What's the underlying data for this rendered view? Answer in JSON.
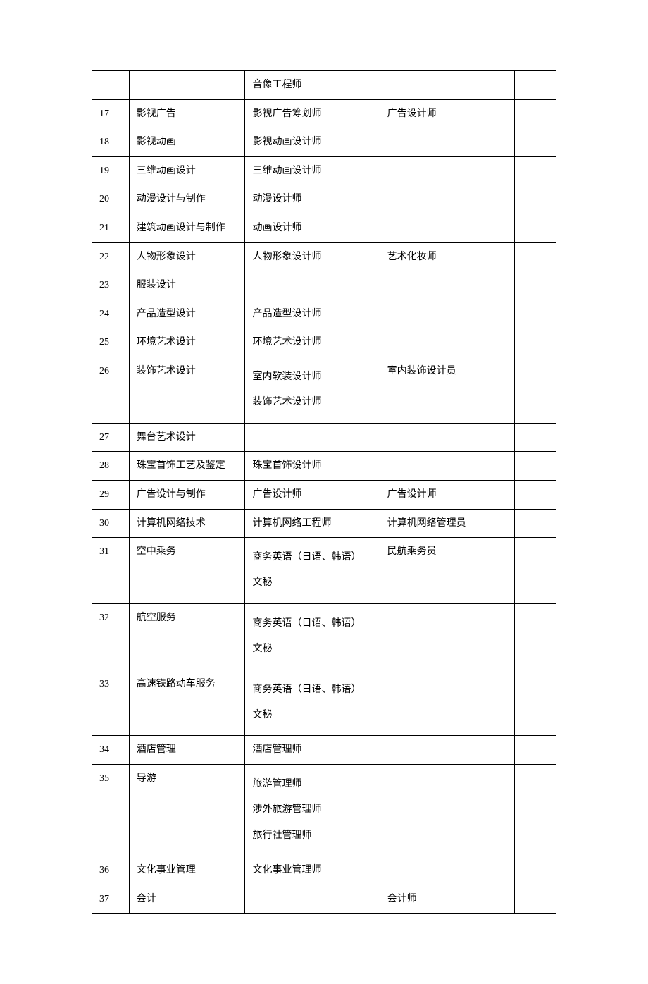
{
  "table": {
    "columns": {
      "widths": [
        "8%",
        "25%",
        "29%",
        "29%",
        "9%"
      ]
    },
    "rows": [
      {
        "c1": "",
        "c2": "",
        "c3": "音像工程师",
        "c4": "",
        "c5": ""
      },
      {
        "c1": "17",
        "c2": "影视广告",
        "c3": "影视广告筹划师",
        "c4": "广告设计师",
        "c5": ""
      },
      {
        "c1": "18",
        "c2": "影视动画",
        "c3": "影视动画设计师",
        "c4": "",
        "c5": ""
      },
      {
        "c1": "19",
        "c2": "三维动画设计",
        "c3": "三维动画设计师",
        "c4": "",
        "c5": ""
      },
      {
        "c1": "20",
        "c2": "动漫设计与制作",
        "c3": "动漫设计师",
        "c4": "",
        "c5": ""
      },
      {
        "c1": "21",
        "c2": "建筑动画设计与制作",
        "c3": "动画设计师",
        "c4": "",
        "c5": ""
      },
      {
        "c1": "22",
        "c2": "人物形象设计",
        "c3": "人物形象设计师",
        "c4": "艺术化妆师",
        "c5": ""
      },
      {
        "c1": "23",
        "c2": "服装设计",
        "c3": "",
        "c4": "",
        "c5": ""
      },
      {
        "c1": "24",
        "c2": "产品造型设计",
        "c3": "产品造型设计师",
        "c4": "",
        "c5": ""
      },
      {
        "c1": "25",
        "c2": "环境艺术设计",
        "c3": "环境艺术设计师",
        "c4": "",
        "c5": ""
      },
      {
        "c1": "26",
        "c2": "装饰艺术设计",
        "c3": "室内软装设计师\n装饰艺术设计师",
        "c4": "室内装饰设计员",
        "c5": "",
        "multi": true
      },
      {
        "c1": "27",
        "c2": "舞台艺术设计",
        "c3": "",
        "c4": "",
        "c5": ""
      },
      {
        "c1": "28",
        "c2": "珠宝首饰工艺及鉴定",
        "c3": "珠宝首饰设计师",
        "c4": "",
        "c5": ""
      },
      {
        "c1": "29",
        "c2": "广告设计与制作",
        "c3": "广告设计师",
        "c4": "广告设计师",
        "c5": ""
      },
      {
        "c1": "30",
        "c2": "计算机网络技术",
        "c3": "计算机网络工程师",
        "c4": "计算机网络管理员",
        "c5": ""
      },
      {
        "c1": "31",
        "c2": "空中乘务",
        "c3": "商务英语（日语、韩语）\n文秘",
        "c4": "民航乘务员",
        "c5": "",
        "multi": true
      },
      {
        "c1": "32",
        "c2": "航空服务",
        "c3": "商务英语（日语、韩语）\n文秘",
        "c4": "",
        "c5": "",
        "multi": true
      },
      {
        "c1": "33",
        "c2": "高速铁路动车服务",
        "c3": "商务英语（日语、韩语）\n文秘",
        "c4": "",
        "c5": "",
        "multi": true
      },
      {
        "c1": "34",
        "c2": "酒店管理",
        "c3": "酒店管理师",
        "c4": "",
        "c5": ""
      },
      {
        "c1": "35",
        "c2": "导游",
        "c3": "旅游管理师\n涉外旅游管理师\n旅行社管理师",
        "c4": "",
        "c5": "",
        "multi": true
      },
      {
        "c1": "36",
        "c2": "文化事业管理",
        "c3": "文化事业管理师",
        "c4": "",
        "c5": ""
      },
      {
        "c1": "37",
        "c2": "会计",
        "c3": "",
        "c4": "会计师",
        "c5": ""
      }
    ],
    "styling": {
      "border_color": "#000000",
      "background_color": "#ffffff",
      "text_color": "#000000",
      "font_size": 14,
      "font_family": "SimSun",
      "cell_padding": "10px 8px 10px 10px"
    }
  }
}
